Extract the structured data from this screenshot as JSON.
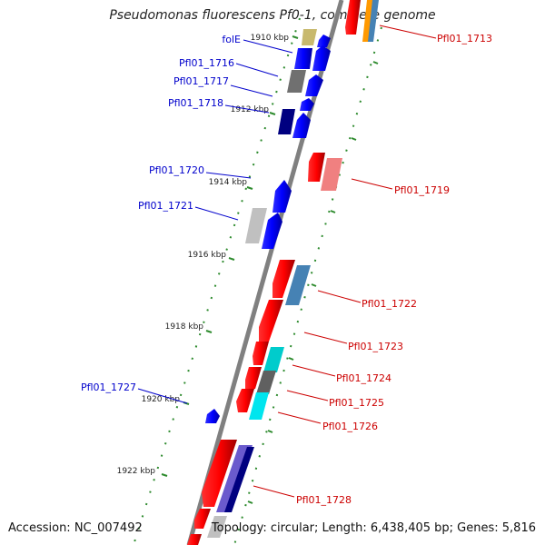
{
  "header": {
    "title": "Pseudomonas fluorescens Pf0-1, complete genome"
  },
  "footer": {
    "accession": "Accession: NC_007492",
    "summary": "Topology: circular; Length: 6,438,405 bp; Genes: 5,816"
  },
  "ticks": [
    "1910 kbp",
    "1912 kbp",
    "1914 kbp",
    "1916 kbp",
    "1918 kbp",
    "1920 kbp",
    "1922 kbp"
  ],
  "genes_left_strand": [
    "folE",
    "Pfl01_1716",
    "Pfl01_1717",
    "Pfl01_1718",
    "Pfl01_1720",
    "Pfl01_1721",
    "Pfl01_1727"
  ],
  "genes_right_strand": [
    "Pfl01_1713",
    "Pfl01_1719",
    "Pfl01_1722",
    "Pfl01_1723",
    "Pfl01_1724",
    "Pfl01_1725",
    "Pfl01_1726",
    "Pfl01_1728"
  ],
  "colors": {
    "left_label": "#0000cc",
    "right_label": "#cc0000",
    "tick_mark": "#228b22"
  }
}
